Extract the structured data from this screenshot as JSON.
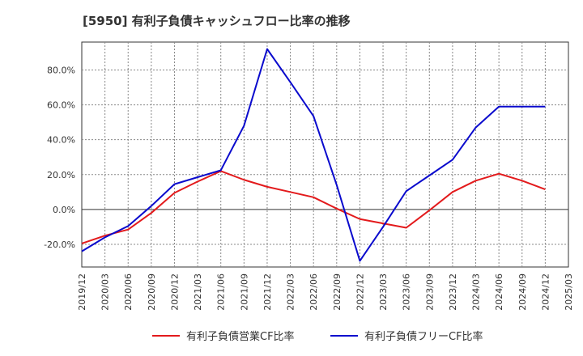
{
  "chart_data": {
    "type": "line",
    "title": "[5950]  有利子負債キャッシュフロー比率の推移",
    "xlabel": "",
    "ylabel": "",
    "ylim": [
      -33,
      96
    ],
    "y_ticks": [
      -20,
      0,
      20,
      40,
      60,
      80
    ],
    "y_tick_labels": [
      "-20.0%",
      "0.0%",
      "20.0%",
      "40.0%",
      "60.0%",
      "80.0%"
    ],
    "x_tick_labels": [
      "2019/12",
      "2020/03",
      "2020/06",
      "2020/09",
      "2020/12",
      "2021/03",
      "2021/06",
      "2021/09",
      "2021/12",
      "2022/03",
      "2022/06",
      "2022/09",
      "2022/12",
      "2023/03",
      "2023/06",
      "2023/09",
      "2023/12",
      "2024/03",
      "2024/06",
      "2024/09",
      "2024/12",
      "2025/03"
    ],
    "grid": true,
    "legend_position": "bottom",
    "series": [
      {
        "name": "有利子負債営業CF比率",
        "color": "#e31a1c",
        "x": [
          "2019/12",
          "2020/03",
          "2020/06",
          "2020/09",
          "2020/12",
          "2021/03",
          "2021/06",
          "2021/09",
          "2021/12",
          "2022/03",
          "2022/06",
          "2022/09",
          "2022/12",
          "2023/03",
          "2023/06",
          "2023/09",
          "2023/12",
          "2024/03",
          "2024/06",
          "2024/09",
          "2024/12"
        ],
        "values": [
          -19.5,
          -15,
          -11.5,
          -2,
          9.5,
          16,
          22,
          17,
          13,
          10,
          7,
          0.5,
          -5.5,
          -8,
          -10.5,
          -0.5,
          10,
          16.5,
          20.5,
          16.5,
          11.5
        ]
      },
      {
        "name": "有利子負債フリーCF比率",
        "color": "#0a0acd",
        "x": [
          "2019/12",
          "2020/03",
          "2020/06",
          "2020/09",
          "2020/12",
          "2021/03",
          "2021/06",
          "2021/09",
          "2021/12",
          "2022/03",
          "2022/06",
          "2022/09",
          "2022/12",
          "2023/03",
          "2023/06",
          "2023/09",
          "2023/12",
          "2024/03",
          "2024/06",
          "2024/09",
          "2024/12"
        ],
        "values": [
          -24,
          -16,
          -9.5,
          2,
          14.5,
          18.5,
          22.5,
          48,
          92,
          73,
          53.5,
          14,
          -29.5,
          -10,
          10.5,
          19.5,
          28.5,
          47,
          59,
          59,
          59
        ]
      }
    ]
  }
}
